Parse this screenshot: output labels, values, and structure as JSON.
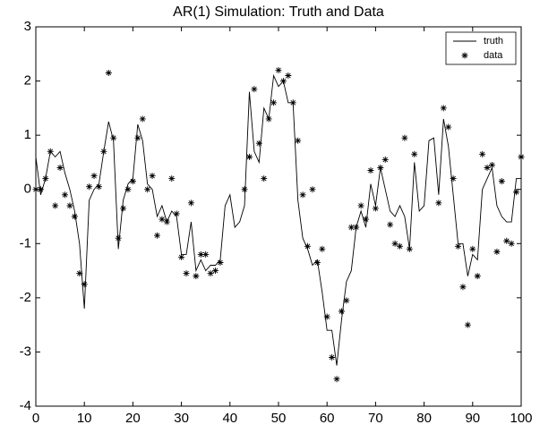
{
  "chart_data": {
    "type": "line",
    "title": "AR(1) Simulation: Truth and Data",
    "xlim": [
      0,
      100
    ],
    "xticks": [
      0,
      10,
      20,
      30,
      40,
      50,
      60,
      70,
      80,
      90,
      100
    ],
    "ylim": [
      -4,
      3
    ],
    "yticks": [
      -4,
      -3,
      -2,
      -1,
      0,
      1,
      2,
      3
    ],
    "grid": false,
    "legend": "upper right",
    "series": [
      {
        "name": "truth",
        "color": "#000000",
        "style": "line",
        "x": [
          0,
          1,
          2,
          3,
          4,
          5,
          6,
          7,
          8,
          9,
          10,
          11,
          12,
          13,
          14,
          15,
          16,
          17,
          18,
          19,
          20,
          21,
          22,
          23,
          24,
          25,
          26,
          27,
          28,
          29,
          30,
          31,
          32,
          33,
          34,
          35,
          36,
          37,
          38,
          39,
          40,
          41,
          42,
          43,
          44,
          45,
          46,
          47,
          48,
          49,
          50,
          51,
          52,
          53,
          54,
          55,
          56,
          57,
          58,
          59,
          60,
          61,
          62,
          63,
          64,
          65,
          66,
          67,
          68,
          69,
          70,
          71,
          72,
          73,
          74,
          75,
          76,
          77,
          78,
          79,
          80,
          81,
          82,
          83,
          84,
          85,
          86,
          87,
          88,
          89,
          90,
          91,
          92,
          93,
          94,
          95,
          96,
          97,
          98,
          99,
          100
        ],
        "values": [
          0.6,
          -0.1,
          0.2,
          0.7,
          0.6,
          0.7,
          0.3,
          0.0,
          -0.4,
          -1.0,
          -2.2,
          -0.2,
          0.0,
          0.1,
          0.7,
          1.25,
          0.9,
          -1.1,
          -0.2,
          0.1,
          0.2,
          1.2,
          0.9,
          0.1,
          0.0,
          -0.5,
          -0.3,
          -0.6,
          -0.4,
          -0.5,
          -1.2,
          -1.2,
          -0.6,
          -1.5,
          -1.3,
          -1.5,
          -1.4,
          -1.4,
          -1.3,
          -0.3,
          -0.1,
          -0.7,
          -0.6,
          -0.3,
          1.8,
          0.7,
          0.5,
          1.5,
          1.3,
          2.1,
          1.9,
          2.0,
          1.6,
          1.6,
          -0.2,
          -0.9,
          -1.1,
          -1.4,
          -1.3,
          -1.9,
          -2.6,
          -2.6,
          -3.25,
          -2.4,
          -1.7,
          -1.5,
          -0.7,
          -0.4,
          -0.7,
          0.1,
          -0.3,
          0.4,
          0.0,
          -0.4,
          -0.5,
          -0.3,
          -0.5,
          -1.1,
          0.5,
          -0.4,
          -0.3,
          0.9,
          0.95,
          -0.1,
          1.3,
          0.8,
          -0.1,
          -1.0,
          -1.0,
          -1.6,
          -1.2,
          -1.3,
          0.0,
          0.2,
          0.4,
          -0.3,
          -0.5,
          -0.6,
          -0.6,
          0.2,
          0.2
        ]
      },
      {
        "name": "data",
        "color": "#000000",
        "style": "marker",
        "x": [
          0,
          1,
          2,
          3,
          4,
          5,
          6,
          7,
          8,
          9,
          10,
          11,
          12,
          13,
          14,
          15,
          16,
          17,
          18,
          19,
          20,
          21,
          22,
          23,
          24,
          25,
          26,
          27,
          28,
          29,
          30,
          31,
          32,
          33,
          34,
          35,
          36,
          37,
          38,
          43,
          44,
          45,
          46,
          47,
          48,
          49,
          50,
          51,
          52,
          53,
          54,
          55,
          56,
          57,
          58,
          59,
          60,
          61,
          62,
          63,
          64,
          65,
          66,
          67,
          68,
          69,
          70,
          71,
          72,
          73,
          74,
          75,
          76,
          77,
          78,
          83,
          84,
          85,
          86,
          87,
          88,
          89,
          90,
          91,
          92,
          93,
          94,
          95,
          96,
          97,
          98,
          99,
          100
        ],
        "values": [
          0.0,
          0.0,
          0.2,
          0.7,
          -0.3,
          0.4,
          -0.1,
          -0.3,
          -0.5,
          -1.55,
          -1.75,
          0.05,
          0.25,
          0.05,
          0.7,
          2.15,
          0.95,
          -0.9,
          -0.35,
          0.0,
          0.15,
          0.95,
          1.3,
          0.0,
          0.25,
          -0.85,
          -0.55,
          -0.6,
          0.2,
          -0.45,
          -1.25,
          -1.55,
          -0.25,
          -1.6,
          -1.2,
          -1.2,
          -1.55,
          -1.5,
          -1.35,
          0.0,
          0.6,
          1.85,
          0.85,
          0.2,
          1.3,
          1.6,
          2.2,
          2.0,
          2.1,
          1.6,
          0.9,
          -0.1,
          -1.05,
          0.0,
          -1.35,
          -1.1,
          -2.35,
          -3.1,
          -3.5,
          -2.25,
          -2.05,
          -0.7,
          -0.7,
          -0.3,
          -0.55,
          0.35,
          -0.35,
          0.4,
          0.55,
          -0.65,
          -1.0,
          -1.05,
          0.95,
          -1.1,
          0.65,
          -0.25,
          1.5,
          1.15,
          0.2,
          -1.05,
          -1.8,
          -2.5,
          -1.1,
          -1.6,
          0.65,
          0.4,
          0.45,
          -1.15,
          0.15,
          -0.95,
          -1.0,
          -0.05,
          0.6
        ]
      }
    ]
  }
}
